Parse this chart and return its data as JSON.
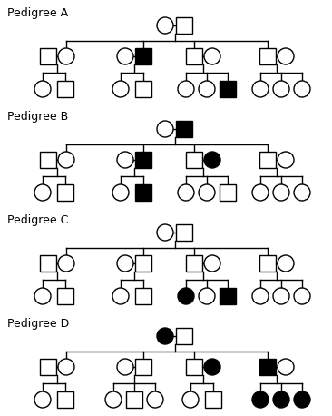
{
  "background": "#ffffff",
  "lw": 1.0,
  "pedigrees": [
    {
      "label": "Pedigree A",
      "gen1_couple": [
        {
          "type": "circle",
          "filled": false
        },
        {
          "type": "square",
          "filled": false
        }
      ],
      "gen2": [
        {
          "left": {
            "type": "square",
            "filled": false
          },
          "right": {
            "type": "circle",
            "filled": false
          },
          "child_side": "right"
        },
        {
          "left": {
            "type": "circle",
            "filled": false
          },
          "right": {
            "type": "square",
            "filled": true
          },
          "child_side": "right"
        },
        {
          "left": {
            "type": "square",
            "filled": false
          },
          "right": {
            "type": "circle",
            "filled": false
          },
          "child_side": "left"
        },
        {
          "left": {
            "type": "square",
            "filled": false
          },
          "right": {
            "type": "circle",
            "filled": false
          },
          "child_side": "left"
        }
      ],
      "gen3": [
        [
          {
            "type": "circle",
            "filled": false
          },
          {
            "type": "square",
            "filled": false
          }
        ],
        [
          {
            "type": "circle",
            "filled": false
          },
          {
            "type": "square",
            "filled": false
          }
        ],
        [
          {
            "type": "circle",
            "filled": false
          },
          {
            "type": "circle",
            "filled": false
          },
          {
            "type": "square",
            "filled": true
          }
        ],
        [
          {
            "type": "circle",
            "filled": false
          },
          {
            "type": "circle",
            "filled": false
          },
          {
            "type": "circle",
            "filled": false
          }
        ]
      ]
    },
    {
      "label": "Pedigree B",
      "gen1_couple": [
        {
          "type": "circle",
          "filled": false
        },
        {
          "type": "square",
          "filled": true
        }
      ],
      "gen2": [
        {
          "left": {
            "type": "square",
            "filled": false
          },
          "right": {
            "type": "circle",
            "filled": false
          },
          "child_side": "right"
        },
        {
          "left": {
            "type": "circle",
            "filled": false
          },
          "right": {
            "type": "square",
            "filled": true
          },
          "child_side": "right"
        },
        {
          "left": {
            "type": "square",
            "filled": false
          },
          "right": {
            "type": "circle",
            "filled": true
          },
          "child_side": "left"
        },
        {
          "left": {
            "type": "square",
            "filled": false
          },
          "right": {
            "type": "circle",
            "filled": false
          },
          "child_side": "left"
        }
      ],
      "gen3": [
        [
          {
            "type": "circle",
            "filled": false
          },
          {
            "type": "square",
            "filled": false
          }
        ],
        [
          {
            "type": "circle",
            "filled": false
          },
          {
            "type": "square",
            "filled": true
          }
        ],
        [
          {
            "type": "circle",
            "filled": false
          },
          {
            "type": "circle",
            "filled": false
          },
          {
            "type": "square",
            "filled": false
          }
        ],
        [
          {
            "type": "circle",
            "filled": false
          },
          {
            "type": "circle",
            "filled": false
          },
          {
            "type": "circle",
            "filled": false
          }
        ]
      ]
    },
    {
      "label": "Pedigree C",
      "gen1_couple": [
        {
          "type": "circle",
          "filled": false
        },
        {
          "type": "square",
          "filled": false
        }
      ],
      "gen2": [
        {
          "left": {
            "type": "square",
            "filled": false
          },
          "right": {
            "type": "circle",
            "filled": false
          },
          "child_side": "right"
        },
        {
          "left": {
            "type": "circle",
            "filled": false
          },
          "right": {
            "type": "square",
            "filled": false
          },
          "child_side": "right"
        },
        {
          "left": {
            "type": "square",
            "filled": false
          },
          "right": {
            "type": "circle",
            "filled": false
          },
          "child_side": "left"
        },
        {
          "left": {
            "type": "square",
            "filled": false
          },
          "right": {
            "type": "circle",
            "filled": false
          },
          "child_side": "left"
        }
      ],
      "gen3": [
        [
          {
            "type": "circle",
            "filled": false
          },
          {
            "type": "square",
            "filled": false
          }
        ],
        [
          {
            "type": "circle",
            "filled": false
          },
          {
            "type": "square",
            "filled": false
          }
        ],
        [
          {
            "type": "circle",
            "filled": true
          },
          {
            "type": "circle",
            "filled": false
          },
          {
            "type": "square",
            "filled": true
          }
        ],
        [
          {
            "type": "circle",
            "filled": false
          },
          {
            "type": "circle",
            "filled": false
          },
          {
            "type": "circle",
            "filled": false
          }
        ]
      ]
    },
    {
      "label": "Pedigree D",
      "gen1_couple": [
        {
          "type": "circle",
          "filled": true
        },
        {
          "type": "square",
          "filled": false
        }
      ],
      "gen2": [
        {
          "left": {
            "type": "square",
            "filled": false
          },
          "right": {
            "type": "circle",
            "filled": false
          },
          "child_side": "right"
        },
        {
          "left": {
            "type": "circle",
            "filled": false
          },
          "right": {
            "type": "square",
            "filled": false
          },
          "child_side": "right"
        },
        {
          "left": {
            "type": "square",
            "filled": false
          },
          "right": {
            "type": "circle",
            "filled": true
          },
          "child_side": "left"
        },
        {
          "left": {
            "type": "square",
            "filled": true
          },
          "right": {
            "type": "circle",
            "filled": false
          },
          "child_side": "left"
        }
      ],
      "gen3": [
        [
          {
            "type": "circle",
            "filled": false
          },
          {
            "type": "square",
            "filled": false
          }
        ],
        [
          {
            "type": "circle",
            "filled": false
          },
          {
            "type": "square",
            "filled": false
          },
          {
            "type": "circle",
            "filled": false
          }
        ],
        [
          {
            "type": "circle",
            "filled": false
          },
          {
            "type": "square",
            "filled": false
          }
        ],
        [
          {
            "type": "circle",
            "filled": true
          },
          {
            "type": "circle",
            "filled": true
          },
          {
            "type": "circle",
            "filled": true
          }
        ]
      ]
    }
  ]
}
